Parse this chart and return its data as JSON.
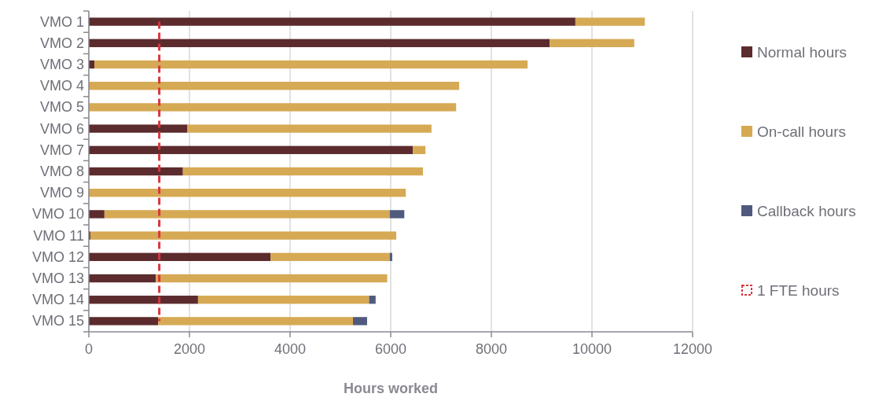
{
  "chart_data": {
    "type": "bar",
    "orientation": "horizontal",
    "stacked": true,
    "xlabel": "Hours worked",
    "categories": [
      "VMO 1",
      "VMO 2",
      "VMO 3",
      "VMO 4",
      "VMO 5",
      "VMO 6",
      "VMO 7",
      "VMO 8",
      "VMO 9",
      "VMO 10",
      "VMO 11",
      "VMO 12",
      "VMO 13",
      "VMO 14",
      "VMO 15"
    ],
    "series": [
      {
        "name": "Normal hours",
        "color": "#5c2b2e",
        "values": [
          9670,
          9160,
          110,
          0,
          0,
          1960,
          6440,
          1870,
          0,
          310,
          30,
          3610,
          1330,
          2170,
          1380
        ]
      },
      {
        "name": "On-call hours",
        "color": "#d6a954",
        "values": [
          1380,
          1680,
          8610,
          7360,
          7300,
          4850,
          250,
          4770,
          6300,
          5670,
          6080,
          2370,
          4600,
          3400,
          3870
        ]
      },
      {
        "name": "Callback hours",
        "color": "#4f5a7e",
        "values": [
          0,
          0,
          0,
          0,
          0,
          0,
          0,
          0,
          0,
          290,
          0,
          50,
          0,
          130,
          280
        ]
      },
      {
        "name": "1 FTE hours",
        "type": "line",
        "color": "#d9363e",
        "line_style": "dashed",
        "values": [
          1400,
          1400,
          1400,
          1400,
          1400,
          1400,
          1400,
          1400,
          1400,
          1400,
          1400,
          1400,
          1400,
          1400,
          1400
        ]
      }
    ],
    "xlim": [
      0,
      12000
    ],
    "xticks": [
      0,
      2000,
      4000,
      6000,
      8000,
      10000,
      12000
    ],
    "grid": "x",
    "legend": "right"
  }
}
